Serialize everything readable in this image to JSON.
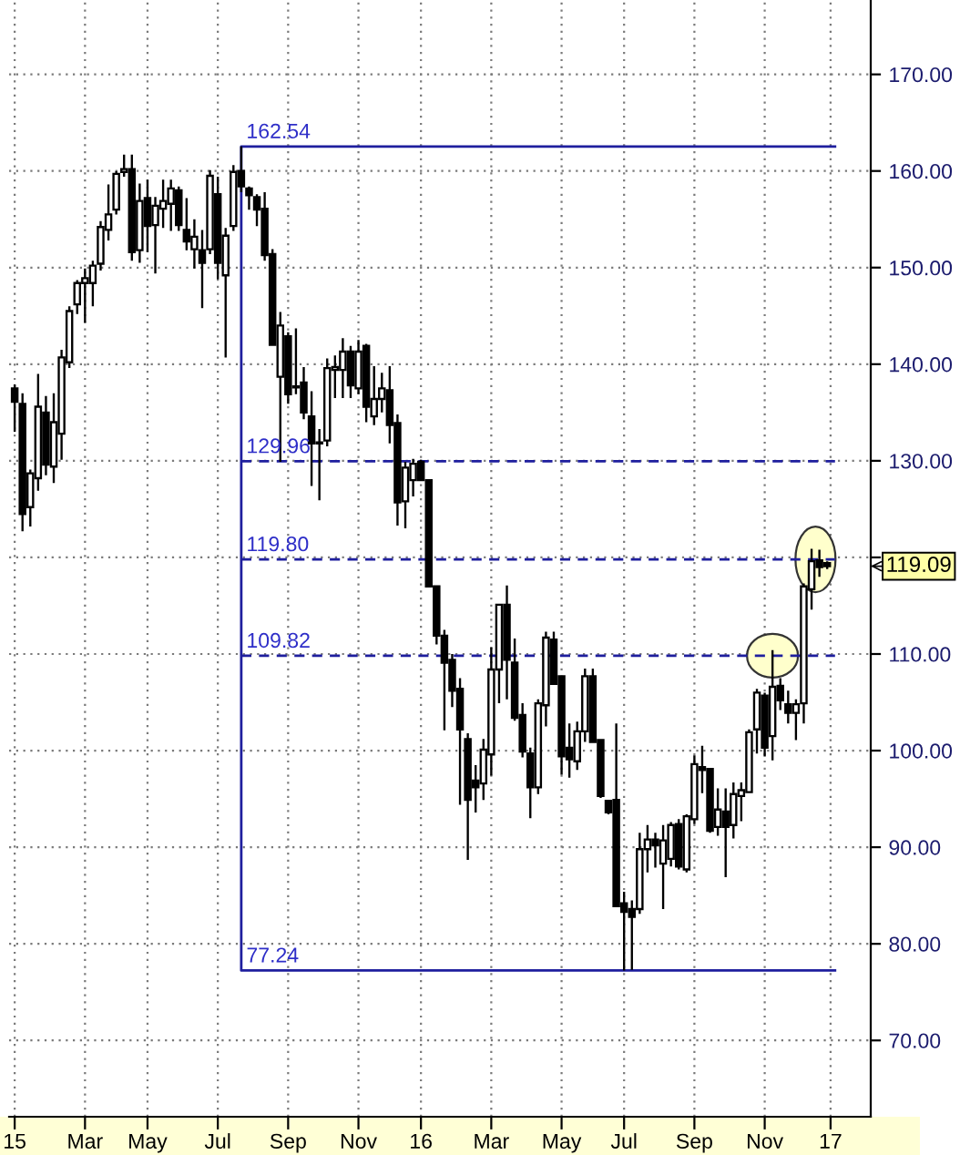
{
  "chart_data": {
    "type": "candlestick",
    "x": [
      "2015-01-02",
      "2015-01-09",
      "2015-01-16",
      "2015-01-23",
      "2015-01-30",
      "2015-02-06",
      "2015-02-13",
      "2015-02-20",
      "2015-02-27",
      "2015-03-06",
      "2015-03-13",
      "2015-03-20",
      "2015-03-27",
      "2015-04-03",
      "2015-04-10",
      "2015-04-17",
      "2015-04-24",
      "2015-05-01",
      "2015-05-08",
      "2015-05-15",
      "2015-05-22",
      "2015-05-29",
      "2015-06-05",
      "2015-06-12",
      "2015-06-19",
      "2015-06-26",
      "2015-07-03",
      "2015-07-10",
      "2015-07-17",
      "2015-07-24",
      "2015-07-31",
      "2015-08-07",
      "2015-08-14",
      "2015-08-21",
      "2015-08-28",
      "2015-09-04",
      "2015-09-11",
      "2015-09-18",
      "2015-09-25",
      "2015-10-02",
      "2015-10-09",
      "2015-10-16",
      "2015-10-23",
      "2015-10-30",
      "2015-11-06",
      "2015-11-13",
      "2015-11-20",
      "2015-11-27",
      "2015-12-04",
      "2015-12-11",
      "2015-12-18",
      "2015-12-25",
      "2016-01-01",
      "2016-01-08",
      "2016-01-15",
      "2016-01-22",
      "2016-01-29",
      "2016-02-05",
      "2016-02-12",
      "2016-02-19",
      "2016-02-26",
      "2016-03-04",
      "2016-03-11",
      "2016-03-18",
      "2016-03-25",
      "2016-04-01",
      "2016-04-08",
      "2016-04-15",
      "2016-04-22",
      "2016-04-29",
      "2016-05-06",
      "2016-05-13",
      "2016-05-20",
      "2016-05-27",
      "2016-06-03",
      "2016-06-10",
      "2016-06-17",
      "2016-06-24",
      "2016-07-01",
      "2016-07-08",
      "2016-07-15",
      "2016-07-22",
      "2016-07-29",
      "2016-08-05",
      "2016-08-12",
      "2016-08-19",
      "2016-08-26",
      "2016-09-02",
      "2016-09-09",
      "2016-09-16",
      "2016-09-23",
      "2016-09-30",
      "2016-10-07",
      "2016-10-14",
      "2016-10-21",
      "2016-10-28",
      "2016-11-04",
      "2016-11-11",
      "2016-11-18",
      "2016-11-25",
      "2016-12-02",
      "2016-12-09",
      "2016-12-16",
      "2016-12-23",
      "2016-12-30"
    ],
    "ohlc": [
      [
        137.5,
        137.9,
        133.0,
        136.1
      ],
      [
        135.9,
        137.0,
        122.7,
        124.5
      ],
      [
        125.2,
        129.1,
        123.2,
        128.7
      ],
      [
        128.2,
        139.0,
        126.9,
        135.6
      ],
      [
        135.0,
        136.7,
        128.5,
        129.6
      ],
      [
        129.4,
        137.0,
        127.7,
        134.0
      ],
      [
        132.8,
        141.5,
        130.1,
        140.7
      ],
      [
        140.2,
        146.0,
        139.6,
        145.5
      ],
      [
        146.2,
        148.7,
        145.2,
        148.4
      ],
      [
        148.4,
        149.9,
        144.3,
        148.9
      ],
      [
        148.4,
        150.7,
        146.0,
        150.2
      ],
      [
        150.4,
        154.8,
        149.7,
        154.2
      ],
      [
        153.9,
        158.6,
        152.8,
        155.5
      ],
      [
        156.0,
        160.0,
        155.5,
        159.7
      ],
      [
        159.9,
        161.7,
        159.4,
        160.2
      ],
      [
        160.2,
        161.7,
        150.7,
        151.6
      ],
      [
        151.8,
        158.7,
        150.5,
        156.9
      ],
      [
        157.2,
        159.1,
        151.6,
        154.3
      ],
      [
        154.4,
        157.3,
        149.4,
        156.4
      ],
      [
        156.1,
        159.1,
        154.1,
        156.9
      ],
      [
        156.6,
        159.1,
        153.8,
        158.2
      ],
      [
        158.0,
        158.4,
        153.8,
        154.4
      ],
      [
        153.9,
        157.2,
        151.8,
        152.7
      ],
      [
        151.9,
        155.0,
        149.9,
        153.2
      ],
      [
        151.8,
        153.9,
        145.8,
        150.5
      ],
      [
        151.9,
        160.1,
        151.4,
        159.5
      ],
      [
        157.6,
        159.4,
        148.8,
        150.5
      ],
      [
        149.2,
        154.1,
        140.7,
        153.3
      ],
      [
        154.3,
        160.6,
        153.8,
        159.9
      ],
      [
        160.0,
        162.54,
        157.8,
        158.4
      ],
      [
        158.2,
        158.4,
        156.0,
        157.5
      ],
      [
        157.3,
        157.6,
        154.3,
        156.0
      ],
      [
        156.1,
        157.8,
        150.7,
        151.3
      ],
      [
        151.4,
        151.9,
        141.9,
        142.0
      ],
      [
        138.7,
        145.4,
        129.9,
        144.0
      ],
      [
        142.9,
        143.3,
        135.9,
        136.9
      ],
      [
        137.7,
        143.7,
        136.9,
        137.6
      ],
      [
        138.1,
        139.7,
        134.3,
        135.0
      ],
      [
        134.6,
        137.2,
        127.4,
        131.8
      ],
      [
        131.9,
        133.3,
        125.9,
        131.8
      ],
      [
        132.1,
        140.6,
        131.5,
        139.6
      ],
      [
        139.4,
        140.9,
        136.5,
        139.7
      ],
      [
        139.4,
        142.7,
        136.5,
        141.3
      ],
      [
        141.3,
        141.9,
        136.5,
        137.8
      ],
      [
        137.5,
        142.5,
        136.9,
        141.3
      ],
      [
        141.9,
        142.1,
        134.0,
        135.6
      ],
      [
        134.6,
        139.8,
        133.7,
        136.4
      ],
      [
        136.4,
        139.1,
        135.0,
        137.5
      ],
      [
        137.3,
        139.8,
        131.8,
        133.7
      ],
      [
        133.9,
        134.8,
        123.3,
        125.7
      ],
      [
        125.8,
        129.9,
        123.0,
        129.3
      ],
      [
        128.0,
        130.2,
        126.3,
        129.7
      ],
      [
        129.9,
        130.1,
        128.0,
        128.0
      ],
      [
        128.0,
        128.0,
        117.0,
        117.0
      ],
      [
        117.0,
        117.0,
        111.0,
        111.9
      ],
      [
        111.9,
        112.5,
        102.1,
        109.1
      ],
      [
        109.4,
        110.0,
        104.5,
        106.2
      ],
      [
        106.4,
        107.5,
        94.4,
        102.2
      ],
      [
        101.2,
        101.8,
        88.7,
        94.9
      ],
      [
        96.9,
        98.5,
        93.6,
        96.2
      ],
      [
        96.6,
        101.2,
        94.9,
        100.1
      ],
      [
        99.6,
        110.7,
        97.4,
        108.4
      ],
      [
        108.4,
        115.2,
        104.9,
        115.1
      ],
      [
        115.1,
        117.1,
        105.3,
        109.4
      ],
      [
        109.1,
        111.6,
        103.1,
        103.4
      ],
      [
        103.7,
        104.9,
        99.3,
        99.9
      ],
      [
        99.7,
        100.3,
        93.0,
        96.2
      ],
      [
        96.2,
        105.3,
        95.5,
        104.9
      ],
      [
        104.7,
        112.3,
        102.5,
        111.7
      ],
      [
        111.5,
        112.3,
        106.9,
        106.9
      ],
      [
        107.7,
        107.7,
        97.5,
        99.4
      ],
      [
        100.3,
        102.8,
        97.2,
        99.1
      ],
      [
        98.9,
        103.0,
        98.0,
        102.0
      ],
      [
        102.0,
        108.5,
        100.9,
        107.7
      ],
      [
        107.7,
        108.5,
        100.9,
        100.9
      ],
      [
        101.1,
        101.1,
        95.1,
        95.3
      ],
      [
        94.8,
        94.9,
        93.4,
        93.6
      ],
      [
        94.9,
        102.8,
        83.9,
        83.9
      ],
      [
        84.2,
        85.4,
        77.24,
        83.3
      ],
      [
        83.6,
        84.5,
        77.3,
        82.8
      ],
      [
        83.6,
        91.5,
        83.1,
        89.8
      ],
      [
        89.8,
        92.3,
        87.4,
        90.8
      ],
      [
        90.8,
        91.5,
        87.9,
        90.2
      ],
      [
        88.3,
        92.3,
        83.6,
        90.7
      ],
      [
        88.8,
        92.6,
        88.0,
        92.3
      ],
      [
        92.4,
        92.9,
        87.7,
        88.0
      ],
      [
        87.7,
        93.4,
        87.4,
        93.2
      ],
      [
        92.9,
        99.5,
        92.4,
        98.6
      ],
      [
        98.3,
        100.5,
        95.6,
        98.0
      ],
      [
        98.1,
        98.2,
        91.5,
        91.7
      ],
      [
        92.1,
        96.1,
        91.2,
        93.9
      ],
      [
        93.7,
        96.1,
        86.9,
        92.1
      ],
      [
        92.3,
        96.7,
        90.9,
        95.5
      ],
      [
        95.3,
        96.7,
        92.7,
        95.9
      ],
      [
        95.7,
        102.2,
        95.6,
        101.9
      ],
      [
        102.2,
        106.4,
        99.7,
        106.0
      ],
      [
        105.7,
        106.0,
        99.4,
        100.3
      ],
      [
        101.5,
        110.4,
        99.0,
        106.6
      ],
      [
        106.7,
        107.5,
        104.2,
        105.2
      ],
      [
        104.8,
        106.2,
        102.8,
        103.9
      ],
      [
        103.9,
        105.3,
        101.1,
        104.8
      ],
      [
        104.9,
        117.3,
        102.8,
        117.0
      ],
      [
        116.7,
        120.9,
        114.6,
        119.6
      ],
      [
        119.7,
        120.8,
        118.0,
        119.0
      ],
      [
        119.4,
        119.6,
        118.8,
        119.09
      ]
    ],
    "series": [
      {
        "type": "line",
        "x": [
          "2017-01-06",
          "2015-07-24",
          "2015-07-24",
          "2017-01-06"
        ],
        "values": [
          162.54,
          162.54,
          77.24,
          77.24
        ],
        "color": "#1f1f9e",
        "line_style": "solid"
      },
      {
        "type": "line",
        "x": [
          "2015-07-24",
          "2017-01-06"
        ],
        "values": [
          129.96,
          129.96
        ],
        "color": "#1f1f9e",
        "line_style": "dashed"
      },
      {
        "type": "line",
        "x": [
          "2015-07-24",
          "2017-01-06"
        ],
        "values": [
          119.8,
          119.8
        ],
        "color": "#1f1f9e",
        "line_style": "dashed"
      },
      {
        "type": "line",
        "x": [
          "2015-07-24",
          "2017-01-06"
        ],
        "values": [
          109.82,
          109.82
        ],
        "color": "#1f1f9e",
        "line_style": "dashed"
      }
    ],
    "annotations": [
      {
        "text": "162.54",
        "x": "2015-07-24",
        "y": 162.54
      },
      {
        "text": "129.96",
        "x": "2015-07-24",
        "y": 129.96
      },
      {
        "text": "119.80",
        "x": "2015-07-24",
        "y": 119.8
      },
      {
        "text": "109.82",
        "x": "2015-07-24",
        "y": 109.82
      },
      {
        "text": "77.24",
        "x": "2015-07-24",
        "y": 77.24
      },
      "119.09"
    ],
    "xlim": [
      "2014-12-28",
      "2017-02-07"
    ],
    "ylim": [
      62.1,
      177.7
    ],
    "xticks": [
      {
        "value": "2015-01-02",
        "label": "15"
      },
      {
        "value": "2015-03-06",
        "label": "Mar"
      },
      {
        "value": "2015-05-01",
        "label": "May"
      },
      {
        "value": "2015-07-03",
        "label": "Jul"
      },
      {
        "value": "2015-09-04",
        "label": "Sep"
      },
      {
        "value": "2015-11-06",
        "label": "Nov"
      },
      {
        "value": "2016-01-01",
        "label": "16"
      },
      {
        "value": "2016-03-04",
        "label": "Mar"
      },
      {
        "value": "2016-05-06",
        "label": "May"
      },
      {
        "value": "2016-07-01",
        "label": "Jul"
      },
      {
        "value": "2016-09-02",
        "label": "Sep"
      },
      {
        "value": "2016-11-04",
        "label": "Nov"
      },
      {
        "value": "2017-01-02",
        "label": "17"
      }
    ],
    "yticks": [
      {
        "value": 70,
        "label": "70.00"
      },
      {
        "value": 80,
        "label": "80.00"
      },
      {
        "value": 90,
        "label": "90.00"
      },
      {
        "value": 100,
        "label": "100.00"
      },
      {
        "value": 110,
        "label": "110.00"
      },
      {
        "value": 120,
        "label": null
      },
      {
        "value": 130,
        "label": "130.00"
      },
      {
        "value": 140,
        "label": "140.00"
      },
      {
        "value": 150,
        "label": "150.00"
      },
      {
        "value": 160,
        "label": "160.00"
      },
      {
        "value": 170,
        "label": "170.00"
      }
    ],
    "grid": true
  }
}
